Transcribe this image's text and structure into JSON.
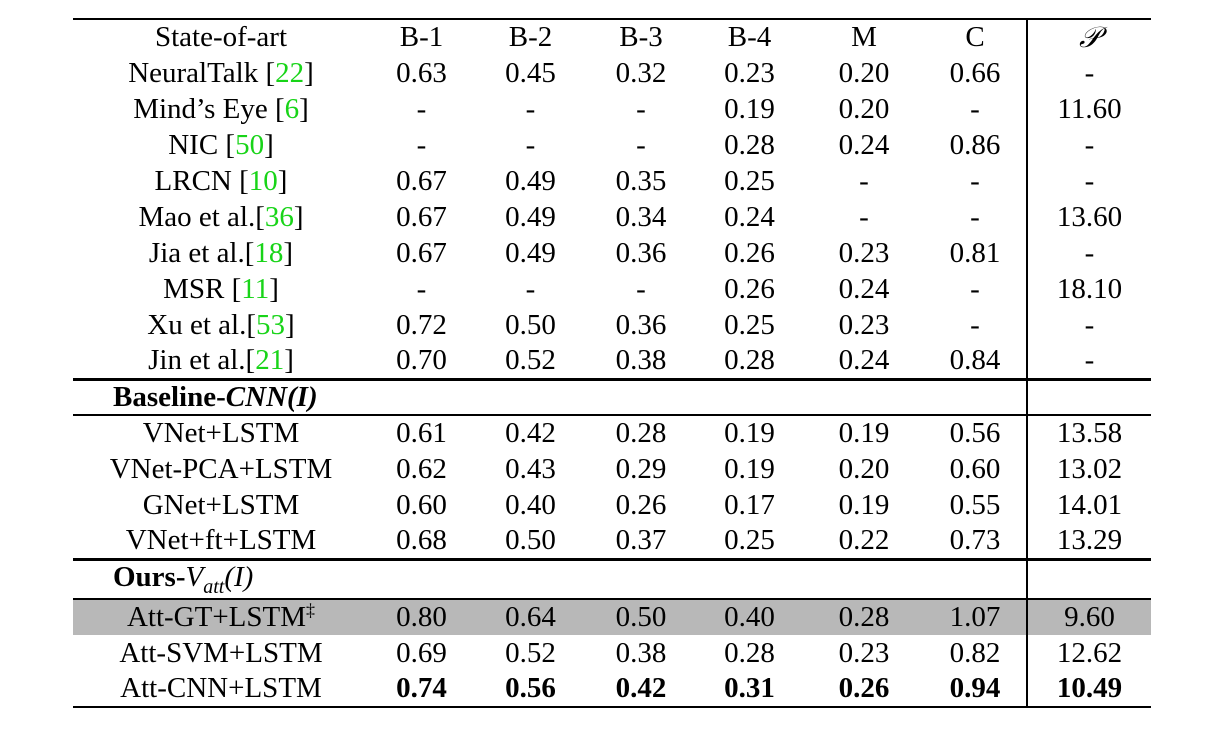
{
  "header": {
    "method": "State-of-art",
    "b1": "B-1",
    "b2": "B-2",
    "b3": "B-3",
    "b4": "B-4",
    "m": "M",
    "c": "C",
    "p": "𝒫"
  },
  "state_of_art": [
    {
      "name": "NeuralTalk [",
      "ref": "22",
      "close": "]",
      "b1": "0.63",
      "b2": "0.45",
      "b3": "0.32",
      "b4": "0.23",
      "m": "0.20",
      "c": "0.66",
      "p": "-"
    },
    {
      "name": "Mind’s Eye [",
      "ref": "6",
      "close": "]",
      "b1": "-",
      "b2": "-",
      "b3": "-",
      "b4": "0.19",
      "m": "0.20",
      "c": "-",
      "p": "11.60"
    },
    {
      "name": "NIC [",
      "ref": "50",
      "close": "]",
      "b1": "-",
      "b2": "-",
      "b3": "-",
      "b4": "0.28",
      "m": "0.24",
      "c": "0.86",
      "p": "-"
    },
    {
      "name": "LRCN [",
      "ref": "10",
      "close": "]",
      "b1": "0.67",
      "b2": "0.49",
      "b3": "0.35",
      "b4": "0.25",
      "m": "-",
      "c": "-",
      "p": "-"
    },
    {
      "name": "Mao et al.[",
      "ref": "36",
      "close": "]",
      "b1": "0.67",
      "b2": "0.49",
      "b3": "0.34",
      "b4": "0.24",
      "m": "-",
      "c": "-",
      "p": "13.60"
    },
    {
      "name": "Jia et al.[",
      "ref": "18",
      "close": "]",
      "b1": "0.67",
      "b2": "0.49",
      "b3": "0.36",
      "b4": "0.26",
      "m": "0.23",
      "c": "0.81",
      "p": "-"
    },
    {
      "name": "MSR [",
      "ref": "11",
      "close": "]",
      "b1": "-",
      "b2": "-",
      "b3": "-",
      "b4": "0.26",
      "m": "0.24",
      "c": "-",
      "p": "18.10"
    },
    {
      "name": "Xu et al.[",
      "ref": "53",
      "close": "]",
      "b1": "0.72",
      "b2": "0.50",
      "b3": "0.36",
      "b4": "0.25",
      "m": "0.23",
      "c": "-",
      "p": "-"
    },
    {
      "name": "Jin et al.[",
      "ref": "21",
      "close": "]",
      "b1": "0.70",
      "b2": "0.52",
      "b3": "0.38",
      "b4": "0.28",
      "m": "0.24",
      "c": "0.84",
      "p": "-"
    }
  ],
  "baseline": {
    "label_prefix": "Baseline-",
    "label_italic": "CNN(I)",
    "rows": [
      {
        "name": "VNet+LSTM",
        "b1": "0.61",
        "b2": "0.42",
        "b3": "0.28",
        "b4": "0.19",
        "m": "0.19",
        "c": "0.56",
        "p": "13.58"
      },
      {
        "name": "VNet-PCA+LSTM",
        "b1": "0.62",
        "b2": "0.43",
        "b3": "0.29",
        "b4": "0.19",
        "m": "0.20",
        "c": "0.60",
        "p": "13.02"
      },
      {
        "name": "GNet+LSTM",
        "b1": "0.60",
        "b2": "0.40",
        "b3": "0.26",
        "b4": "0.17",
        "m": "0.19",
        "c": "0.55",
        "p": "14.01"
      },
      {
        "name": "VNet+ft+LSTM",
        "b1": "0.68",
        "b2": "0.50",
        "b3": "0.37",
        "b4": "0.25",
        "m": "0.22",
        "c": "0.73",
        "p": "13.29"
      }
    ]
  },
  "ours": {
    "label_prefix": "Ours-",
    "label_math": "Vatt(I)",
    "rows": [
      {
        "name": "Att-GT+LSTM",
        "mark": "‡",
        "b1": "0.80",
        "b2": "0.64",
        "b3": "0.50",
        "b4": "0.40",
        "m": "0.28",
        "c": "1.07",
        "p": "9.60",
        "highlight": true
      },
      {
        "name": "Att-SVM+LSTM",
        "b1": "0.69",
        "b2": "0.52",
        "b3": "0.38",
        "b4": "0.28",
        "m": "0.23",
        "c": "0.82",
        "p": "12.62"
      },
      {
        "name": "Att-CNN+LSTM",
        "b1": "0.74",
        "b2": "0.56",
        "b3": "0.42",
        "b4": "0.31",
        "m": "0.26",
        "c": "0.94",
        "p": "10.49",
        "bold": true
      }
    ]
  },
  "colors": {
    "citation": "#18d418",
    "highlight_row": "#b8b8b8"
  }
}
